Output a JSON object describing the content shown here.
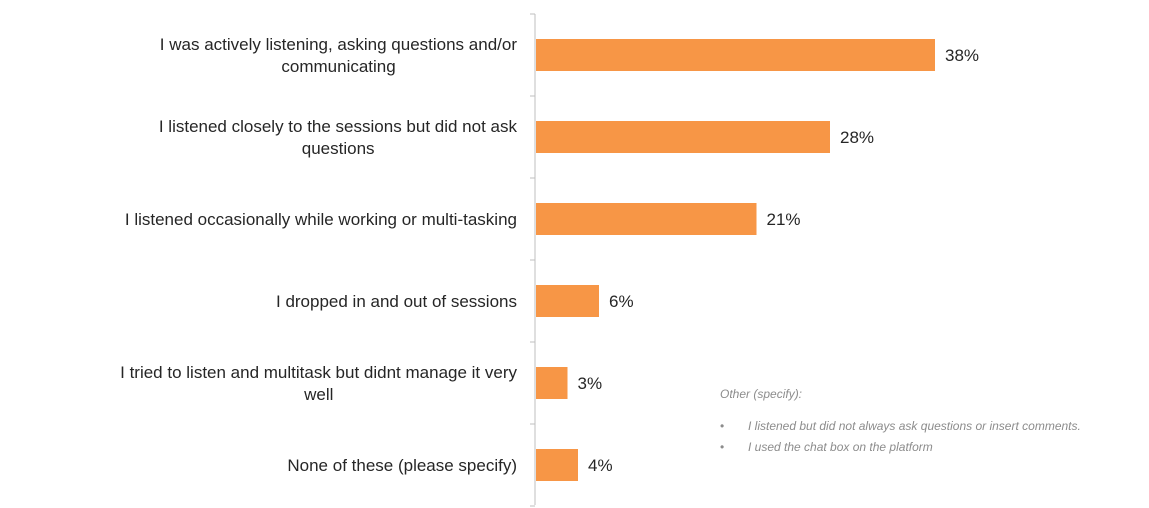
{
  "chart_data": {
    "type": "bar",
    "orientation": "horizontal",
    "categories": [
      [
        "I was actively listening, asking questions and/or",
        "communicating"
      ],
      [
        "I listened closely to the sessions but did not ask",
        "questions"
      ],
      [
        "I listened occasionally while working or multi-tasking"
      ],
      [
        "I dropped in and out of sessions"
      ],
      [
        "I tried to listen and multitask but didnt manage it very",
        "well"
      ],
      [
        "None of these (please specify)"
      ]
    ],
    "values": [
      38,
      28,
      21,
      6,
      3,
      4
    ],
    "value_labels": [
      "38%",
      "28%",
      "21%",
      "6%",
      "3%",
      "4%"
    ],
    "xlim": [
      0,
      40
    ],
    "bar_color": "#F79646",
    "axis_color": "#bfbfbf",
    "grid": false,
    "legend": "none",
    "title": ""
  },
  "annotation": {
    "title": "Other (specify):",
    "items": [
      "I listened but did not always ask questions or insert comments.",
      "I used the chat box on the platform"
    ]
  }
}
